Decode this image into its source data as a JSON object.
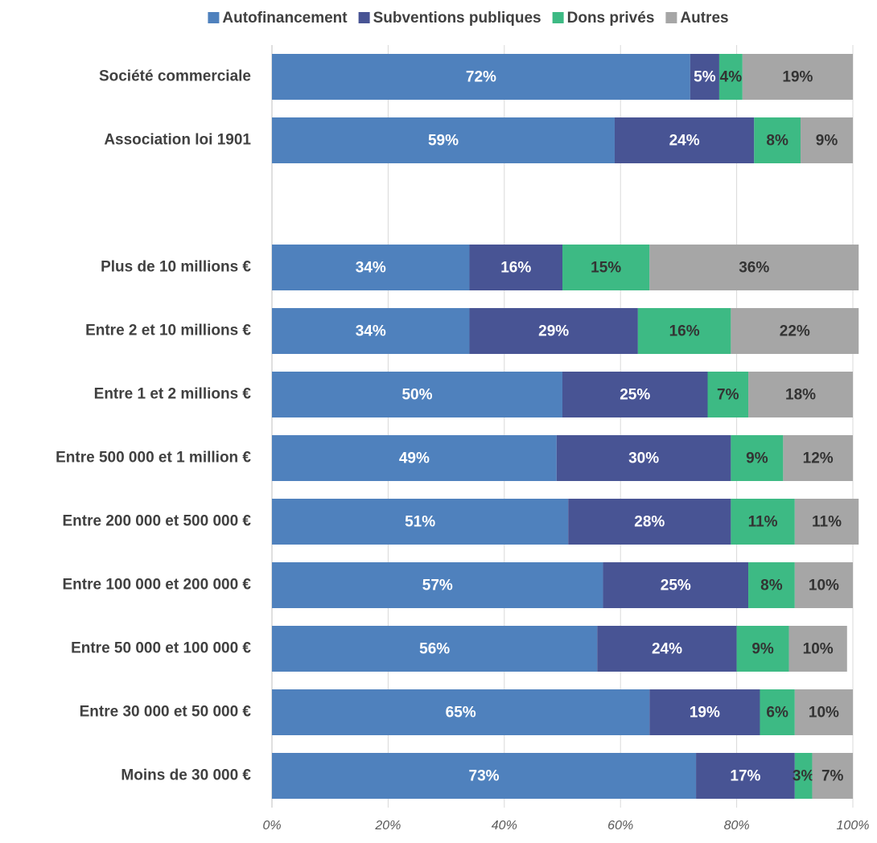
{
  "chart_data": {
    "type": "stacked-bar-horizontal",
    "categories": [
      "Société commerciale",
      "Association loi 1901",
      null,
      "Plus de 10 millions €",
      "Entre 2 et 10 millions €",
      "Entre 1 et 2 millions €",
      "Entre 500 000 et 1 million €",
      "Entre 200 000 et 500 000 €",
      "Entre 100 000 et 200 000 €",
      "Entre 50 000 et 100 000 €",
      "Entre 30 000 et 50 000 €",
      "Moins de 30 000 €"
    ],
    "series": [
      {
        "name": "Autofinancement",
        "color": "#4f81bd",
        "values": [
          72,
          59,
          null,
          34,
          34,
          50,
          49,
          51,
          57,
          56,
          65,
          73
        ],
        "value_labels": [
          "72%",
          "59%",
          null,
          "34%",
          "34%",
          "50%",
          "49%",
          "51%",
          "57%",
          "56%",
          "65%",
          "73%"
        ]
      },
      {
        "name": "Subventions publiques",
        "color": "#485494",
        "values": [
          5,
          24,
          null,
          16,
          29,
          25,
          30,
          28,
          25,
          24,
          19,
          17
        ],
        "value_labels": [
          "5%",
          "24%",
          null,
          "16%",
          "29%",
          "25%",
          "30%",
          "28%",
          "25%",
          "24%",
          "19%",
          "17%"
        ]
      },
      {
        "name": "Dons privés",
        "color": "#3dba84",
        "values": [
          4,
          8,
          null,
          15,
          16,
          7,
          9,
          11,
          8,
          9,
          6,
          3
        ],
        "value_labels": [
          "4%",
          "8%",
          null,
          "15%",
          "16%",
          "7%",
          "9%",
          "11%",
          "8%",
          "9%",
          "6%",
          "3%"
        ]
      },
      {
        "name": "Autres",
        "color": "#a6a6a6",
        "values": [
          19,
          9,
          null,
          36,
          22,
          18,
          12,
          11,
          10,
          10,
          10,
          7
        ],
        "value_labels": [
          "19%",
          "9%",
          null,
          "36%",
          "22%",
          "18%",
          "12%",
          "11%",
          "10%",
          "10%",
          "10%",
          "7%"
        ]
      }
    ],
    "xlim": [
      0,
      100
    ],
    "xticks": [
      {
        "value": 0,
        "label": "0%"
      },
      {
        "value": 20,
        "label": "20%"
      },
      {
        "value": 40,
        "label": "40%"
      },
      {
        "value": 60,
        "label": "60%"
      },
      {
        "value": 80,
        "label": "80%"
      },
      {
        "value": 100,
        "label": "100%"
      }
    ],
    "grid": true,
    "legend": "top"
  }
}
